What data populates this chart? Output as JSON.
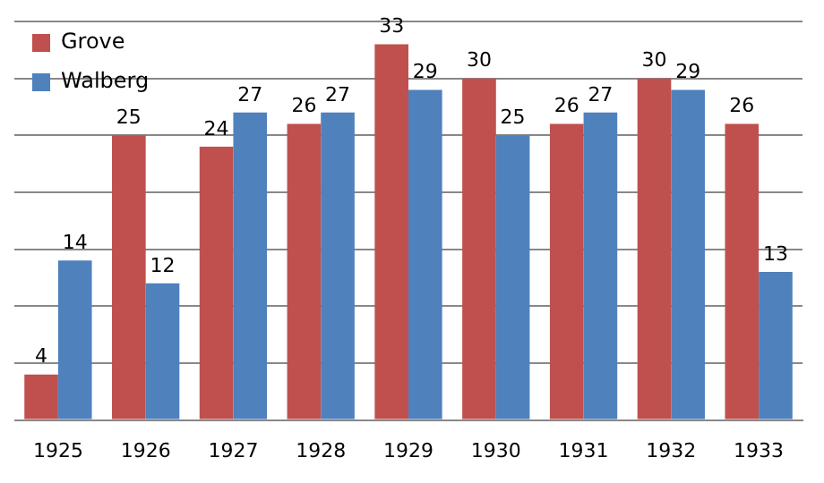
{
  "chart_data": {
    "type": "bar",
    "categories": [
      "1925",
      "1926",
      "1927",
      "1928",
      "1929",
      "1930",
      "1931",
      "1932",
      "1933"
    ],
    "series": [
      {
        "name": "Grove",
        "color": "#c0504d",
        "values": [
          4,
          25,
          24,
          26,
          33,
          30,
          26,
          30,
          26
        ]
      },
      {
        "name": "Walberg",
        "color": "#4f81bd",
        "values": [
          14,
          12,
          27,
          27,
          29,
          25,
          27,
          29,
          13
        ]
      }
    ],
    "ylim": [
      0,
      35
    ],
    "yticks": [
      {
        "value": 0,
        "label": null
      },
      {
        "value": 5,
        "label": null
      },
      {
        "value": 10,
        "label": null
      },
      {
        "value": 15,
        "label": null
      },
      {
        "value": 20,
        "label": null
      },
      {
        "value": 25,
        "label": null
      },
      {
        "value": 30,
        "label": null
      },
      {
        "value": 35,
        "label": null
      }
    ],
    "tick_labels": "x",
    "grid": "y",
    "legend": "top left",
    "data_labels": true
  }
}
